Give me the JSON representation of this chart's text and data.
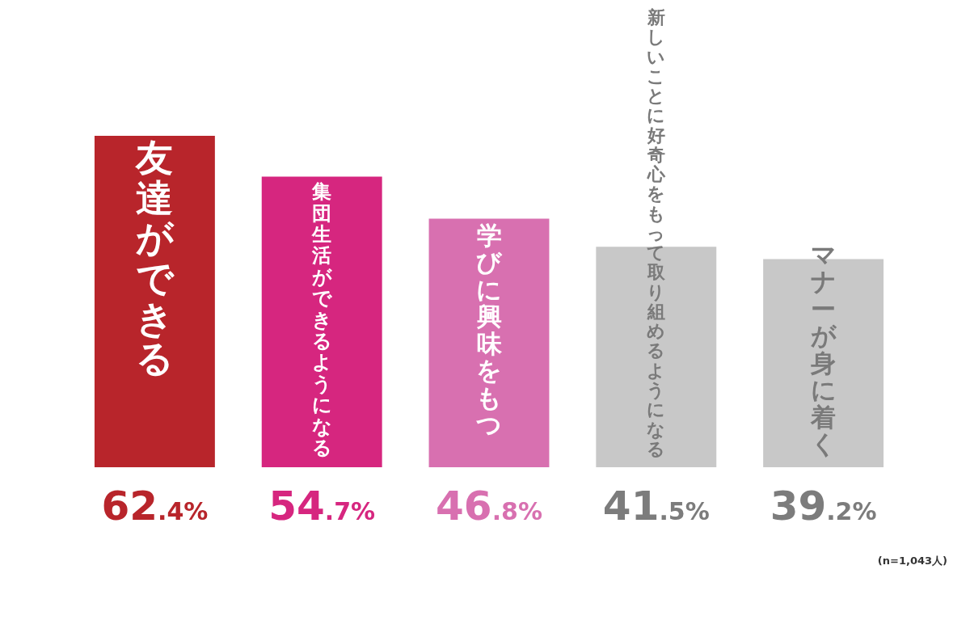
{
  "chart_data": {
    "type": "bar",
    "categories": [
      "友達ができる",
      "集団生活ができるようになる",
      "学びに興味をもつ",
      "新しいことに好奇心をもって取り組めるようになる",
      "マナーが身に着く"
    ],
    "values": [
      62.4,
      54.7,
      46.8,
      41.5,
      39.2
    ],
    "colors": [
      "#b8252b",
      "#d6267f",
      "#d870b0",
      "#c8c8c8",
      "#c8c8c8"
    ],
    "value_labels": [
      "62.4%",
      "54.7%",
      "46.8%",
      "41.5%",
      "39.2%"
    ],
    "annotations": [
      "(n=1,043人)"
    ],
    "legend": false
  }
}
